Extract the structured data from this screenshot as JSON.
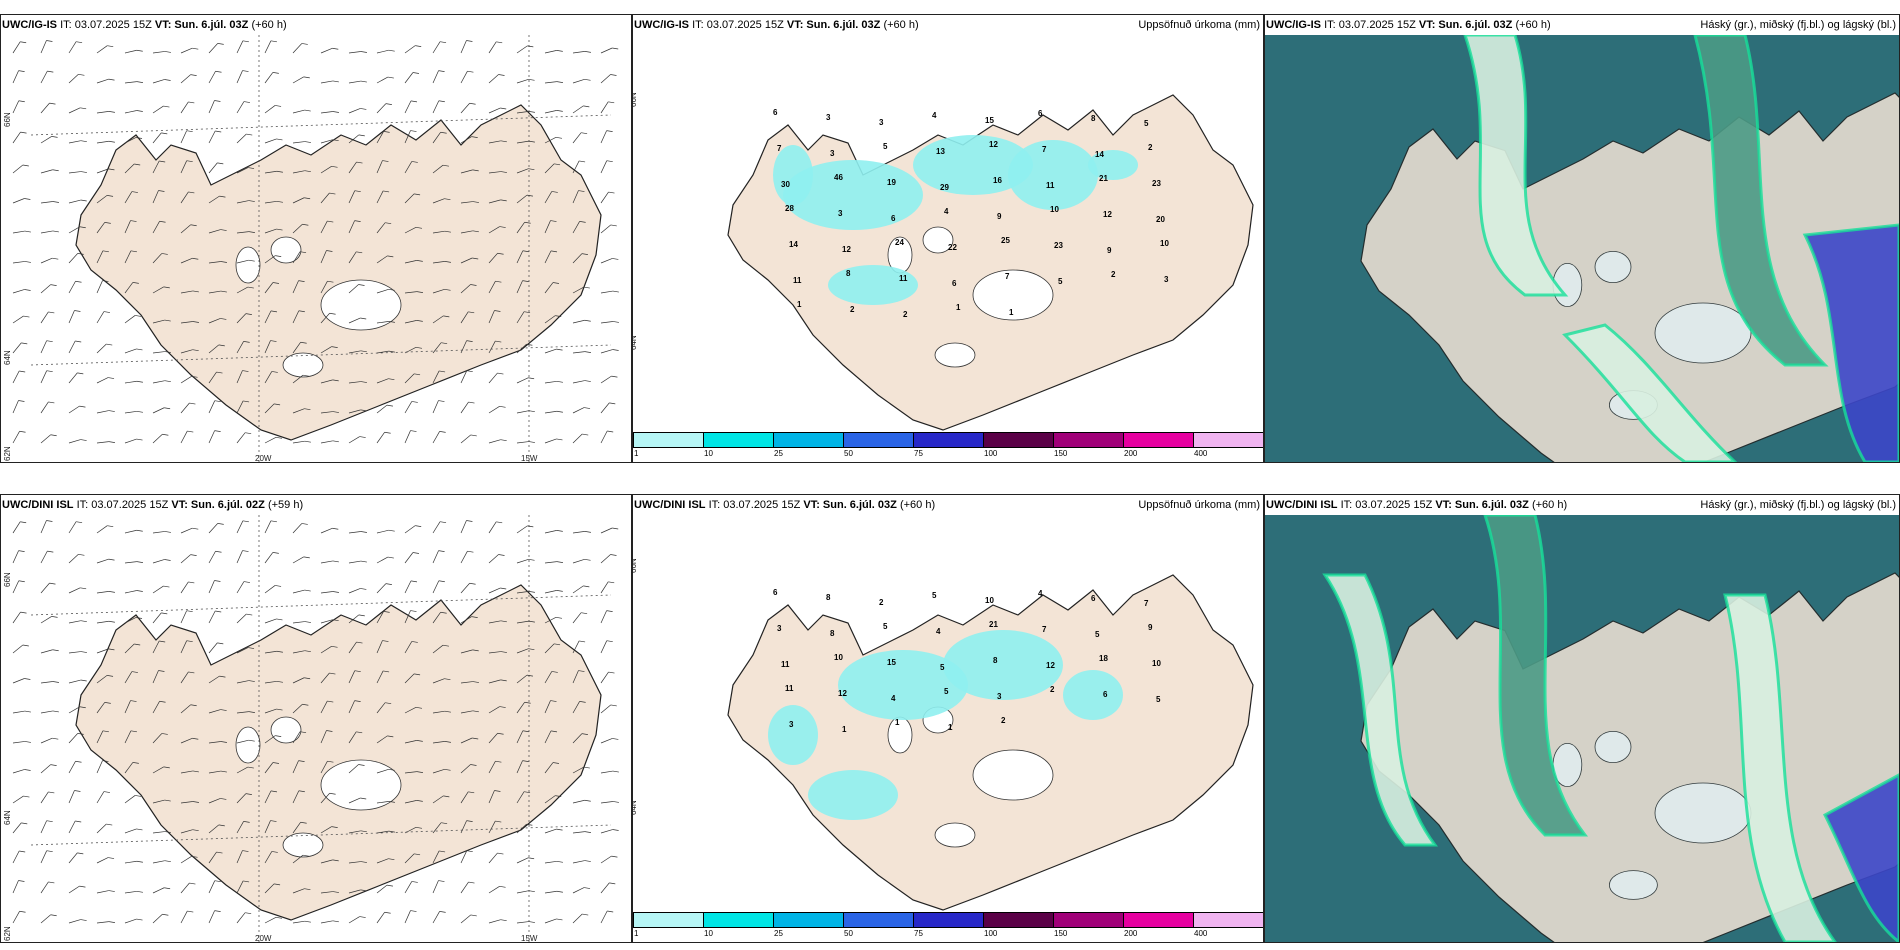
{
  "rows": [
    {
      "wind": {
        "model": "UWC/IG-IS",
        "it": "IT: 03.07.2025 15Z",
        "vt": "VT: Sun. 6.júl. 03Z",
        "lead": "(+60 h)"
      },
      "precip": {
        "model": "UWC/IG-IS",
        "it": "IT: 03.07.2025 15Z",
        "vt": "VT: Sun. 6.júl. 03Z",
        "lead": "(+60 h)",
        "title": "Uppsöfnuð úrkoma (mm)"
      },
      "cloud": {
        "model": "UWC/IG-IS",
        "it": "IT: 03.07.2025 15Z",
        "vt": "VT: Sun. 6.júl. 03Z",
        "lead": "(+60 h)",
        "title": "Háský (gr.), miðský (fj.bl.) og lágský (bl.)"
      },
      "precip_values": [
        "6",
        "3",
        "3",
        "4",
        "15",
        "6",
        "8",
        "5",
        "7",
        "3",
        "5",
        "13",
        "12",
        "7",
        "14",
        "2",
        "30",
        "46",
        "19",
        "29",
        "16",
        "11",
        "21",
        "23",
        "28",
        "3",
        "6",
        "4",
        "9",
        "10",
        "12",
        "20",
        "14",
        "12",
        "24",
        "22",
        "25",
        "23",
        "9",
        "10",
        "11",
        "8",
        "11",
        "6",
        "7",
        "5",
        "2",
        "3",
        "1",
        "2",
        "2",
        "1",
        "1"
      ]
    },
    {
      "wind": {
        "model": "UWC/DINI ISL",
        "it": "IT: 03.07.2025 15Z",
        "vt": "VT: Sun. 6.júl. 02Z",
        "lead": "(+59 h)"
      },
      "precip": {
        "model": "UWC/DINI ISL",
        "it": "IT: 03.07.2025 15Z",
        "vt": "VT: Sun. 6.júl. 03Z",
        "lead": "(+60 h)",
        "title": "Uppsöfnuð úrkoma (mm)"
      },
      "cloud": {
        "model": "UWC/DINI ISL",
        "it": "IT: 03.07.2025 15Z",
        "vt": "VT: Sun. 6.júl. 03Z",
        "lead": "(+60 h)",
        "title": "Háský (gr.), miðský (fj.bl.) og lágský (bl.)"
      },
      "precip_values": [
        "6",
        "8",
        "2",
        "5",
        "10",
        "4",
        "6",
        "7",
        "3",
        "8",
        "5",
        "4",
        "21",
        "7",
        "5",
        "9",
        "11",
        "10",
        "15",
        "5",
        "8",
        "12",
        "18",
        "10",
        "11",
        "12",
        "4",
        "5",
        "3",
        "2",
        "6",
        "5",
        "3",
        "1",
        "1",
        "1",
        "2"
      ]
    }
  ],
  "axis_labels": {
    "lon_20w": "20W",
    "lon_15w": "15W",
    "lat_66n": "66N",
    "lat_64n": "64N",
    "lat_62n": "62N"
  },
  "colorbar": {
    "ticks": [
      "1",
      "10",
      "25",
      "50",
      "75",
      "100",
      "150",
      "200",
      "400"
    ],
    "colors": [
      "#b6f6f6",
      "#00e5e5",
      "#00b4e6",
      "#2a64e6",
      "#2828c8",
      "#5a0046",
      "#a00078",
      "#e600a0",
      "#f0b4f0"
    ]
  },
  "map_colors": {
    "land": "#f3e4d6",
    "glacier": "#ffffff",
    "precip": "#8ff0f0",
    "precip_dark": "#00d4d4",
    "cloud_low": "#2d6e78",
    "cloud_mid": "#4b9a85",
    "cloud_high": "#d8efe0",
    "cloud_blue": "#3c46c8",
    "cloud_bright": "#17e09a"
  }
}
